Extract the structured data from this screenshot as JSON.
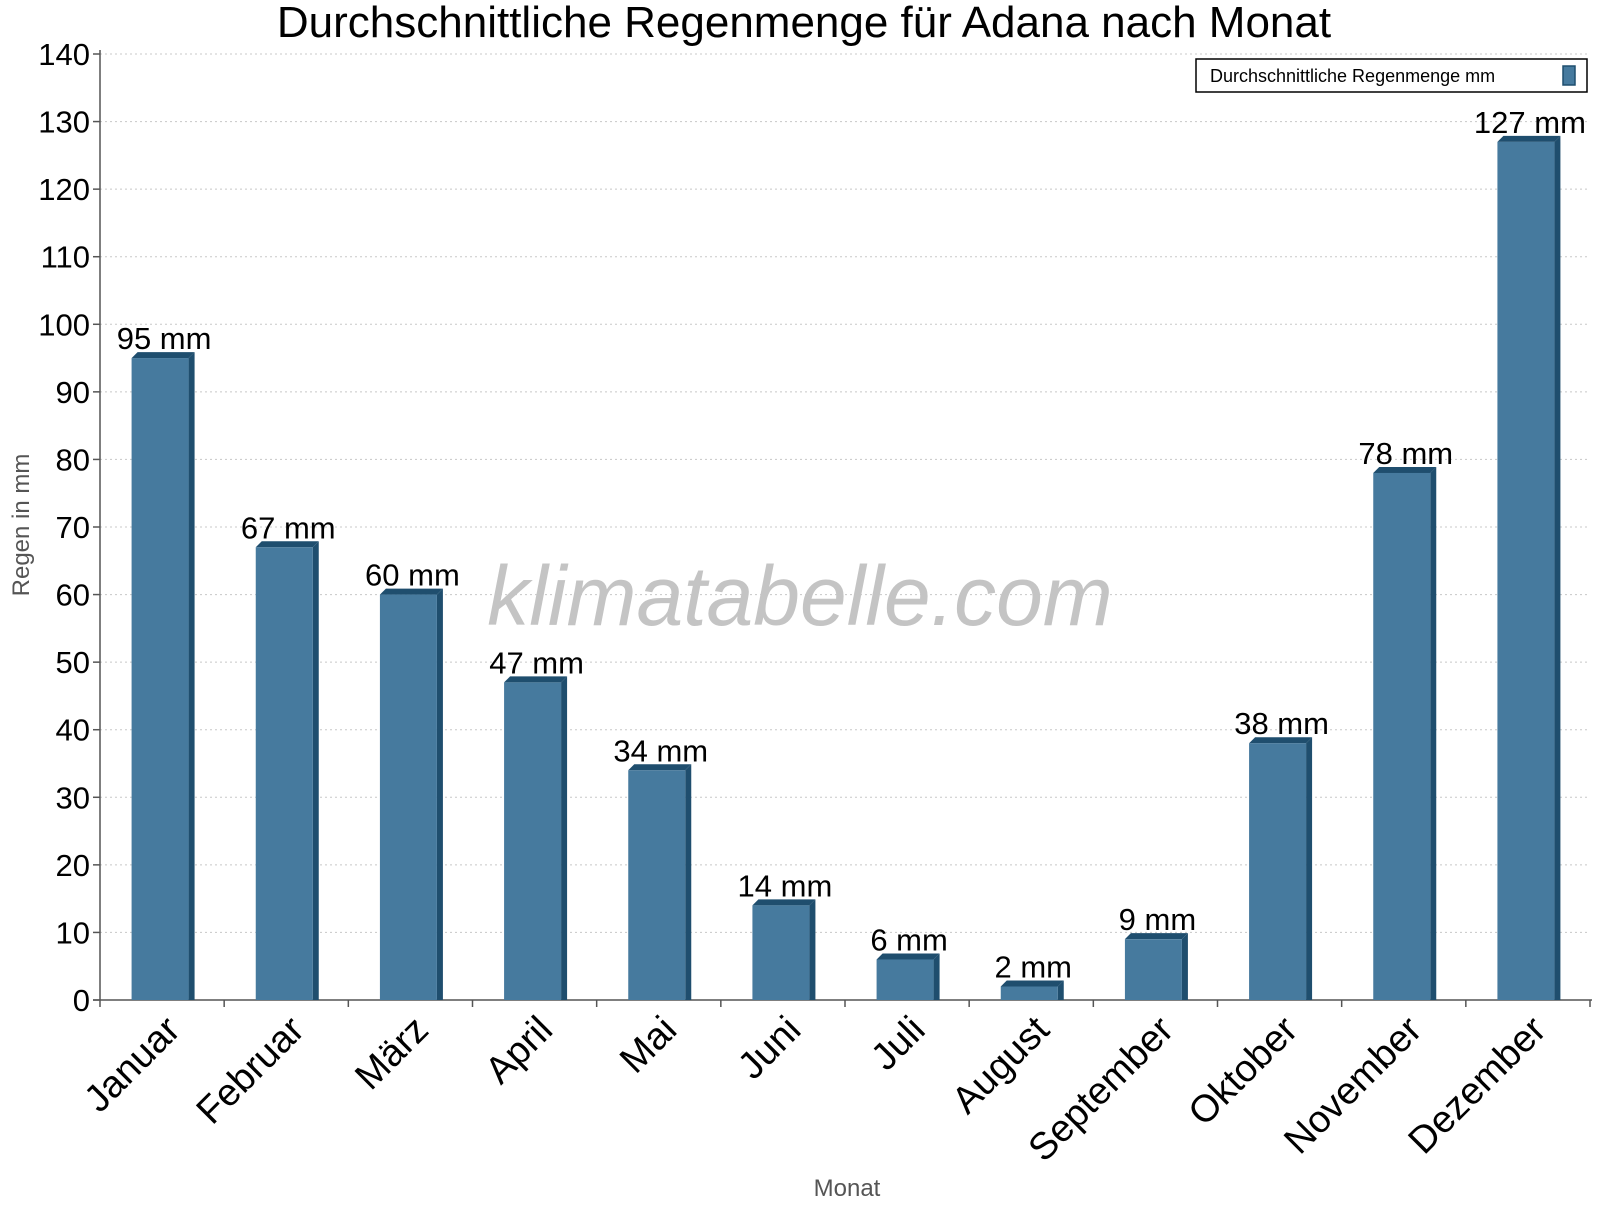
{
  "chart_data": {
    "type": "bar",
    "title": "Durchschnittliche Regenmenge für Adana nach Monat",
    "xlabel": "Monat",
    "ylabel": "Regen in mm",
    "ylim": [
      0,
      140
    ],
    "y_ticks": [
      0,
      10,
      20,
      30,
      40,
      50,
      60,
      70,
      80,
      90,
      100,
      110,
      120,
      130,
      140
    ],
    "grid": true,
    "legend_position": "top-right",
    "categories": [
      "Januar",
      "Februar",
      "März",
      "April",
      "Mai",
      "Juni",
      "Juli",
      "August",
      "September",
      "Oktober",
      "November",
      "Dezember"
    ],
    "series": [
      {
        "name": "Durchschnittliche Regenmenge mm",
        "values": [
          95,
          67,
          60,
          47,
          34,
          14,
          6,
          2,
          9,
          38,
          78,
          127
        ],
        "color": "#467a9e"
      }
    ],
    "data_labels": [
      "95 mm",
      "67 mm",
      "60 mm",
      "47 mm",
      "34 mm",
      "14 mm",
      "6 mm",
      "2 mm",
      "9 mm",
      "38 mm",
      "78 mm",
      "127 mm"
    ],
    "watermark": "klimatabelle.com"
  }
}
